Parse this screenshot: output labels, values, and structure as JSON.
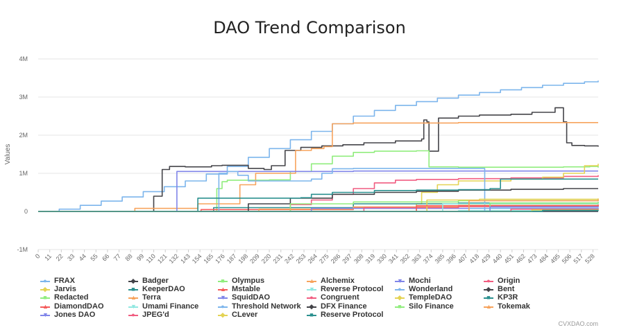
{
  "chart_data": {
    "type": "line",
    "title": "DAO Trend Comparison",
    "xlabel": "",
    "ylabel": "Values",
    "ylim": [
      -1000000,
      4000000
    ],
    "yticks": [
      -1000000,
      0,
      1000000,
      2000000,
      3000000,
      4000000
    ],
    "ytick_labels": [
      "-1M",
      "0",
      "1M",
      "2M",
      "3M",
      "4M"
    ],
    "xlim": [
      0,
      533
    ],
    "xticks": [
      0,
      11,
      22,
      33,
      44,
      55,
      66,
      77,
      88,
      99,
      110,
      121,
      132,
      143,
      154,
      165,
      176,
      187,
      198,
      209,
      220,
      231,
      242,
      253,
      264,
      275,
      286,
      297,
      308,
      319,
      330,
      341,
      352,
      363,
      374,
      385,
      396,
      407,
      418,
      429,
      440,
      451,
      462,
      473,
      484,
      495,
      506,
      517,
      528
    ],
    "grid": "horizontal",
    "legend_placement": "bottom",
    "series": [
      {
        "name": "FRAX",
        "color": "#7cb5ec",
        "marker": "circle",
        "points": [
          [
            0,
            0
          ],
          [
            20,
            60000
          ],
          [
            40,
            160000
          ],
          [
            60,
            270000
          ],
          [
            80,
            380000
          ],
          [
            100,
            520000
          ],
          [
            120,
            650000
          ],
          [
            140,
            800000
          ],
          [
            160,
            980000
          ],
          [
            180,
            1180000
          ],
          [
            200,
            1420000
          ],
          [
            220,
            1650000
          ],
          [
            240,
            1880000
          ],
          [
            260,
            2100000
          ],
          [
            280,
            2300000
          ],
          [
            300,
            2500000
          ],
          [
            320,
            2650000
          ],
          [
            340,
            2780000
          ],
          [
            360,
            2880000
          ],
          [
            380,
            2970000
          ],
          [
            400,
            3050000
          ],
          [
            420,
            3120000
          ],
          [
            440,
            3190000
          ],
          [
            460,
            3250000
          ],
          [
            480,
            3310000
          ],
          [
            500,
            3360000
          ],
          [
            520,
            3400000
          ],
          [
            533,
            3430000
          ]
        ]
      },
      {
        "name": "Badger",
        "color": "#434348",
        "marker": "diamond",
        "points": [
          [
            0,
            0
          ],
          [
            100,
            0
          ],
          [
            110,
            400000
          ],
          [
            118,
            1100000
          ],
          [
            125,
            1180000
          ],
          [
            140,
            1170000
          ],
          [
            165,
            1200000
          ],
          [
            175,
            1210000
          ],
          [
            200,
            1130000
          ],
          [
            215,
            1100000
          ],
          [
            222,
            1200000
          ],
          [
            235,
            1600000
          ],
          [
            250,
            1680000
          ],
          [
            270,
            1720000
          ],
          [
            290,
            1750000
          ],
          [
            310,
            1800000
          ],
          [
            340,
            1850000
          ],
          [
            365,
            1900000
          ],
          [
            367,
            2400000
          ],
          [
            370,
            2350000
          ],
          [
            372,
            1580000
          ],
          [
            380,
            1580000
          ],
          [
            381,
            2450000
          ],
          [
            400,
            2500000
          ],
          [
            420,
            2530000
          ],
          [
            450,
            2550000
          ],
          [
            470,
            2600000
          ],
          [
            488,
            2600000
          ],
          [
            492,
            2720000
          ],
          [
            497,
            2720000
          ],
          [
            500,
            2350000
          ],
          [
            503,
            1800000
          ],
          [
            508,
            1730000
          ],
          [
            520,
            1720000
          ],
          [
            533,
            1700000
          ]
        ]
      },
      {
        "name": "Olympus",
        "color": "#90ed7d",
        "marker": "square",
        "points": [
          [
            0,
            0
          ],
          [
            160,
            0
          ],
          [
            170,
            600000
          ],
          [
            175,
            780000
          ],
          [
            180,
            820000
          ],
          [
            220,
            830000
          ],
          [
            240,
            1050000
          ],
          [
            260,
            1250000
          ],
          [
            280,
            1450000
          ],
          [
            300,
            1550000
          ],
          [
            320,
            1580000
          ],
          [
            360,
            1590000
          ],
          [
            370,
            1590000
          ],
          [
            372,
            1170000
          ],
          [
            400,
            1160000
          ],
          [
            450,
            1160000
          ],
          [
            500,
            1170000
          ],
          [
            525,
            1180000
          ],
          [
            533,
            1150000
          ]
        ]
      },
      {
        "name": "Alchemix",
        "color": "#f7a35c",
        "marker": "triangle",
        "points": [
          [
            0,
            0
          ],
          [
            90,
            0
          ],
          [
            92,
            80000
          ],
          [
            150,
            80000
          ],
          [
            152,
            200000
          ],
          [
            190,
            200000
          ],
          [
            192,
            700000
          ],
          [
            205,
            700000
          ],
          [
            207,
            1000000
          ],
          [
            240,
            1000000
          ],
          [
            245,
            1600000
          ],
          [
            260,
            1650000
          ],
          [
            272,
            1700000
          ],
          [
            280,
            2300000
          ],
          [
            300,
            2320000
          ],
          [
            400,
            2330000
          ],
          [
            500,
            2330000
          ],
          [
            533,
            2330000
          ]
        ]
      },
      {
        "name": "Mochi",
        "color": "#8085e9",
        "marker": "triangle-down",
        "points": [
          [
            0,
            0
          ],
          [
            130,
            0
          ],
          [
            132,
            1050000
          ],
          [
            300,
            1060000
          ],
          [
            400,
            1060000
          ],
          [
            533,
            1060000
          ]
        ]
      },
      {
        "name": "Origin",
        "color": "#f15c80",
        "marker": "circle",
        "points": [
          [
            0,
            0
          ],
          [
            220,
            0
          ],
          [
            240,
            180000
          ],
          [
            260,
            300000
          ],
          [
            280,
            450000
          ],
          [
            300,
            600000
          ],
          [
            320,
            750000
          ],
          [
            340,
            820000
          ],
          [
            360,
            840000
          ],
          [
            400,
            860000
          ],
          [
            450,
            880000
          ],
          [
            500,
            920000
          ],
          [
            533,
            950000
          ]
        ]
      },
      {
        "name": "Jarvis",
        "color": "#e4d354",
        "marker": "diamond",
        "points": [
          [
            0,
            0
          ],
          [
            350,
            0
          ],
          [
            360,
            200000
          ],
          [
            365,
            500000
          ],
          [
            380,
            700000
          ],
          [
            400,
            800000
          ],
          [
            450,
            850000
          ],
          [
            480,
            900000
          ],
          [
            500,
            1000000
          ],
          [
            520,
            1200000
          ],
          [
            533,
            1250000
          ]
        ]
      },
      {
        "name": "KeeperDAO",
        "color": "#2b908f",
        "marker": "square",
        "points": [
          [
            0,
            0
          ],
          [
            165,
            0
          ],
          [
            167,
            100000
          ],
          [
            300,
            200000
          ],
          [
            400,
            220000
          ],
          [
            533,
            240000
          ]
        ]
      },
      {
        "name": "Mstable",
        "color": "#f45b5b",
        "marker": "triangle",
        "points": [
          [
            0,
            0
          ],
          [
            150,
            0
          ],
          [
            155,
            50000
          ],
          [
            300,
            100000
          ],
          [
            400,
            130000
          ],
          [
            533,
            150000
          ]
        ]
      },
      {
        "name": "Reverse Protocol",
        "color": "#91e8e1",
        "marker": "triangle-down",
        "points": [
          [
            0,
            0
          ],
          [
            300,
            0
          ],
          [
            400,
            20000
          ],
          [
            533,
            30000
          ]
        ]
      },
      {
        "name": "Wonderland",
        "color": "#7cb5ec",
        "marker": "circle",
        "points": [
          [
            0,
            0
          ],
          [
            170,
            0
          ],
          [
            172,
            1000000
          ],
          [
            180,
            1050000
          ],
          [
            190,
            950000
          ],
          [
            200,
            800000
          ],
          [
            260,
            850000
          ],
          [
            270,
            1000000
          ],
          [
            280,
            1120000
          ],
          [
            300,
            1130000
          ],
          [
            420,
            1130000
          ],
          [
            425,
            0
          ],
          [
            533,
            0
          ]
        ]
      },
      {
        "name": "Bent",
        "color": "#434348",
        "marker": "diamond",
        "points": [
          [
            0,
            0
          ],
          [
            190,
            0
          ],
          [
            200,
            200000
          ],
          [
            240,
            350000
          ],
          [
            280,
            450000
          ],
          [
            320,
            500000
          ],
          [
            360,
            530000
          ],
          [
            400,
            560000
          ],
          [
            450,
            580000
          ],
          [
            500,
            600000
          ],
          [
            533,
            600000
          ]
        ]
      },
      {
        "name": "Redacted",
        "color": "#90ed7d",
        "marker": "square",
        "points": [
          [
            0,
            0
          ],
          [
            230,
            0
          ],
          [
            240,
            200000
          ],
          [
            300,
            250000
          ],
          [
            400,
            280000
          ],
          [
            533,
            300000
          ]
        ]
      },
      {
        "name": "Terra",
        "color": "#f7a35c",
        "marker": "triangle",
        "points": [
          [
            0,
            0
          ],
          [
            200,
            0
          ],
          [
            210,
            60000
          ],
          [
            300,
            120000
          ],
          [
            400,
            160000
          ],
          [
            533,
            180000
          ]
        ]
      },
      {
        "name": "SquidDAO",
        "color": "#8085e9",
        "marker": "triangle-down",
        "points": [
          [
            0,
            0
          ],
          [
            250,
            0
          ],
          [
            260,
            80000
          ],
          [
            533,
            90000
          ]
        ]
      },
      {
        "name": "Congruent",
        "color": "#f15c80",
        "marker": "circle",
        "points": [
          [
            0,
            0
          ],
          [
            300,
            0
          ],
          [
            310,
            100000
          ],
          [
            400,
            140000
          ],
          [
            533,
            160000
          ]
        ]
      },
      {
        "name": "TempleDAO",
        "color": "#e4d354",
        "marker": "diamond",
        "points": [
          [
            0,
            0
          ],
          [
            360,
            0
          ],
          [
            370,
            300000
          ],
          [
            420,
            320000
          ],
          [
            533,
            340000
          ]
        ]
      },
      {
        "name": "KP3R",
        "color": "#2b908f",
        "marker": "square",
        "points": [
          [
            0,
            0
          ],
          [
            150,
            0
          ],
          [
            152,
            350000
          ],
          [
            250,
            360000
          ],
          [
            260,
            450000
          ],
          [
            280,
            500000
          ],
          [
            320,
            550000
          ],
          [
            360,
            560000
          ],
          [
            400,
            570000
          ],
          [
            430,
            600000
          ],
          [
            440,
            850000
          ],
          [
            533,
            850000
          ]
        ]
      },
      {
        "name": "DiamondDAO",
        "color": "#f45b5b",
        "marker": "triangle",
        "points": [
          [
            0,
            0
          ],
          [
            350,
            0
          ],
          [
            360,
            150000
          ],
          [
            533,
            180000
          ]
        ]
      },
      {
        "name": "Umami Finance",
        "color": "#91e8e1",
        "marker": "triangle-down",
        "points": [
          [
            0,
            0
          ],
          [
            380,
            0
          ],
          [
            385,
            200000
          ],
          [
            533,
            210000
          ]
        ]
      },
      {
        "name": "Threshold Network",
        "color": "#7cb5ec",
        "marker": "circle",
        "points": [
          [
            0,
            0
          ],
          [
            400,
            0
          ],
          [
            410,
            80000
          ],
          [
            533,
            100000
          ]
        ]
      },
      {
        "name": "DFX Finance",
        "color": "#434348",
        "marker": "diamond",
        "points": [
          [
            0,
            0
          ],
          [
            533,
            0
          ]
        ]
      },
      {
        "name": "Silo Finance",
        "color": "#90ed7d",
        "marker": "square",
        "points": [
          [
            0,
            0
          ],
          [
            420,
            0
          ],
          [
            430,
            220000
          ],
          [
            533,
            250000
          ]
        ]
      },
      {
        "name": "Tokemak",
        "color": "#f7a35c",
        "marker": "triangle",
        "points": [
          [
            0,
            0
          ],
          [
            400,
            0
          ],
          [
            410,
            280000
          ],
          [
            533,
            320000
          ]
        ]
      },
      {
        "name": "Jones DAO",
        "color": "#8085e9",
        "marker": "triangle-down",
        "points": [
          [
            0,
            0
          ],
          [
            420,
            0
          ],
          [
            430,
            120000
          ],
          [
            533,
            130000
          ]
        ]
      },
      {
        "name": "JPEG'd",
        "color": "#f15c80",
        "marker": "circle",
        "points": [
          [
            0,
            0
          ],
          [
            440,
            0
          ],
          [
            450,
            60000
          ],
          [
            533,
            70000
          ]
        ]
      },
      {
        "name": "CLever",
        "color": "#e4d354",
        "marker": "diamond",
        "points": [
          [
            0,
            0
          ],
          [
            460,
            0
          ],
          [
            470,
            40000
          ],
          [
            533,
            50000
          ]
        ]
      },
      {
        "name": "Reserve Protocol",
        "color": "#2b908f",
        "marker": "square",
        "points": [
          [
            0,
            0
          ],
          [
            470,
            0
          ],
          [
            480,
            30000
          ],
          [
            533,
            40000
          ]
        ]
      }
    ]
  },
  "credit": "CVXDAO.com"
}
